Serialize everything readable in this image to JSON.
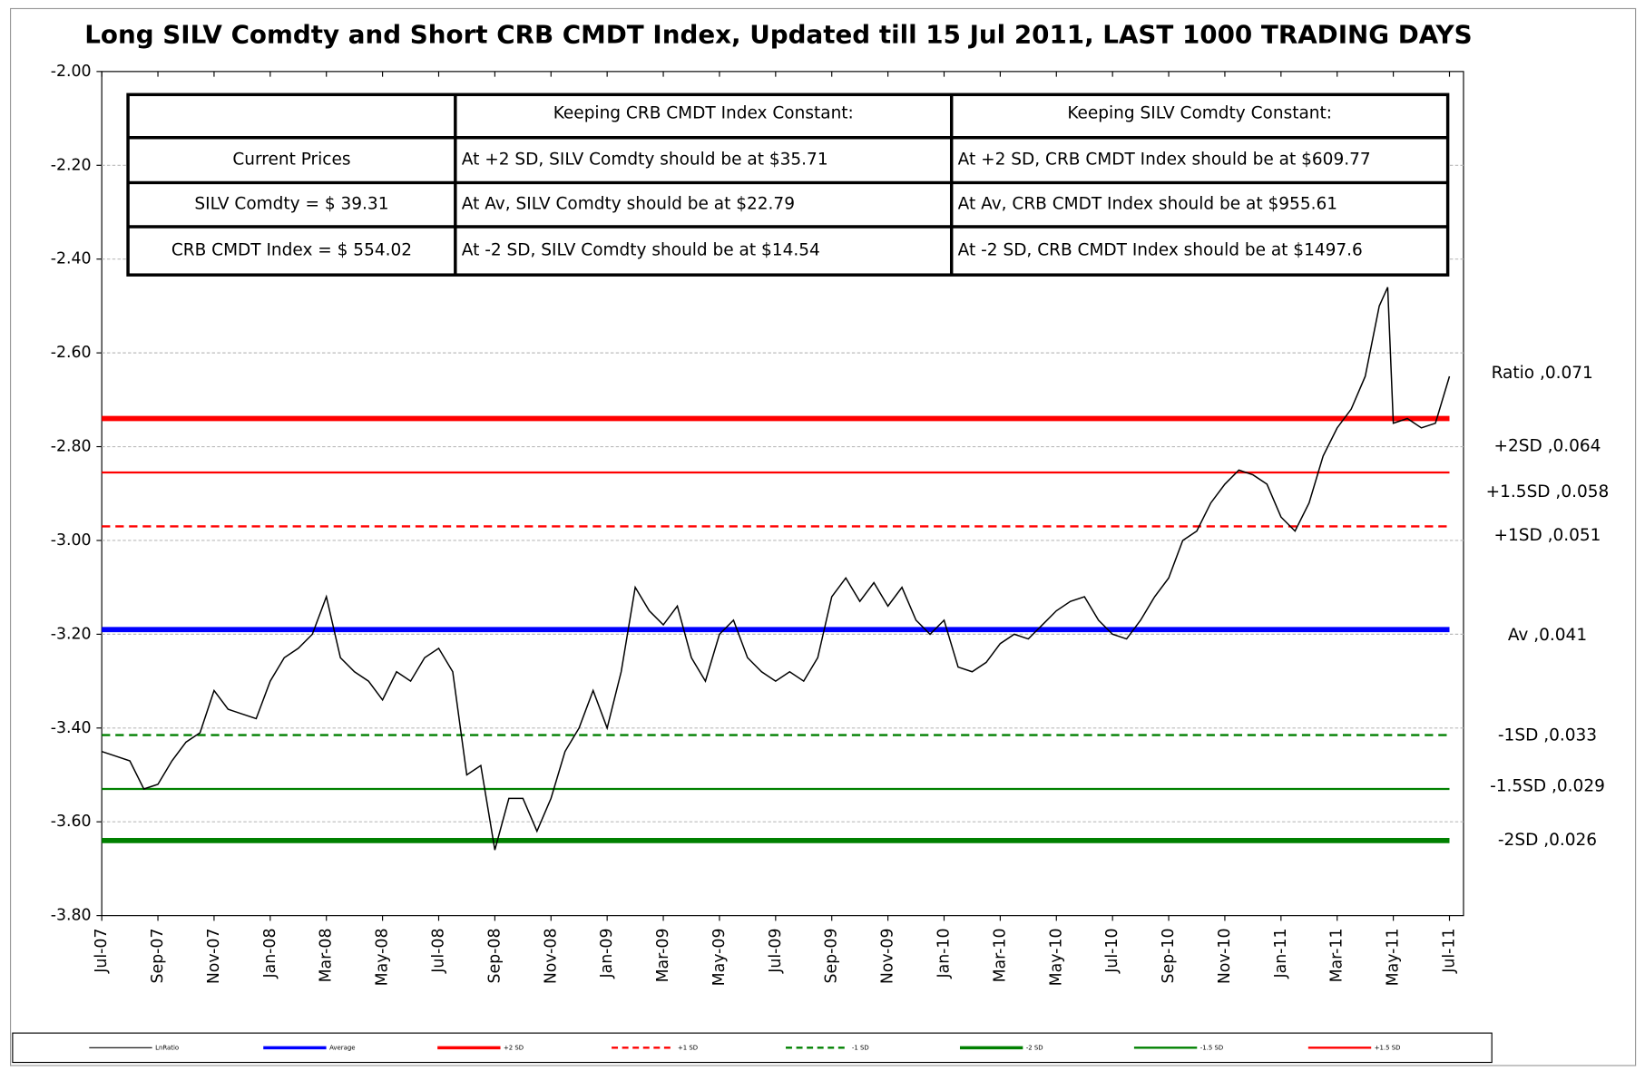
{
  "chart_data": {
    "type": "line",
    "title": "Long SILV Comdty and Short CRB CMDT Index, Updated till 15 Jul 2011, LAST 1000 TRADING DAYS",
    "xlim": [
      0,
      48.5
    ],
    "xticks": [
      {
        "value": 0,
        "label": "Jul-07"
      },
      {
        "value": 2,
        "label": "Sep-07"
      },
      {
        "value": 4,
        "label": "Nov-07"
      },
      {
        "value": 6,
        "label": "Jan-08"
      },
      {
        "value": 8,
        "label": "Mar-08"
      },
      {
        "value": 10,
        "label": "May-08"
      },
      {
        "value": 12,
        "label": "Jul-08"
      },
      {
        "value": 14,
        "label": "Sep-08"
      },
      {
        "value": 16,
        "label": "Nov-08"
      },
      {
        "value": 18,
        "label": "Jan-09"
      },
      {
        "value": 20,
        "label": "Mar-09"
      },
      {
        "value": 22,
        "label": "May-09"
      },
      {
        "value": 24,
        "label": "Jul-09"
      },
      {
        "value": 26,
        "label": "Sep-09"
      },
      {
        "value": 28,
        "label": "Nov-09"
      },
      {
        "value": 30,
        "label": "Jan-10"
      },
      {
        "value": 32,
        "label": "Mar-10"
      },
      {
        "value": 34,
        "label": "May-10"
      },
      {
        "value": 36,
        "label": "Jul-10"
      },
      {
        "value": 38,
        "label": "Sep-10"
      },
      {
        "value": 40,
        "label": "Nov-10"
      },
      {
        "value": 42,
        "label": "Jan-11"
      },
      {
        "value": 44,
        "label": "Mar-11"
      },
      {
        "value": 46,
        "label": "May-11"
      },
      {
        "value": 48,
        "label": "Jul-11"
      }
    ],
    "ylim": [
      -3.8,
      -2.0
    ],
    "yticks": [
      {
        "value": -2.0,
        "label": "-2.00"
      },
      {
        "value": -2.2,
        "label": "-2.20"
      },
      {
        "value": -2.4,
        "label": "-2.40"
      },
      {
        "value": -2.6,
        "label": "-2.60"
      },
      {
        "value": -2.8,
        "label": "-2.80"
      },
      {
        "value": -3.0,
        "label": "-3.00"
      },
      {
        "value": -3.2,
        "label": "-3.20"
      },
      {
        "value": -3.4,
        "label": "-3.40"
      },
      {
        "value": -3.6,
        "label": "-3.60"
      },
      {
        "value": -3.8,
        "label": "-3.80"
      }
    ],
    "grid": true,
    "series": [
      {
        "name": "LnRatio",
        "color": "#000000",
        "x": [
          0,
          0.5,
          1,
          1.5,
          2,
          2.5,
          3,
          3.5,
          4,
          4.5,
          5,
          5.5,
          6,
          6.5,
          7,
          7.5,
          8,
          8.5,
          9,
          9.5,
          10,
          10.5,
          11,
          11.5,
          12,
          12.5,
          13,
          13.5,
          14,
          14.5,
          15,
          15.5,
          16,
          16.5,
          17,
          17.5,
          18,
          18.5,
          19,
          19.5,
          20,
          20.5,
          21,
          21.5,
          22,
          22.5,
          23,
          23.5,
          24,
          24.5,
          25,
          25.5,
          26,
          26.5,
          27,
          27.5,
          28,
          28.5,
          29,
          29.5,
          30,
          30.5,
          31,
          31.5,
          32,
          32.5,
          33,
          33.5,
          34,
          34.5,
          35,
          35.5,
          36,
          36.5,
          37,
          37.5,
          38,
          38.5,
          39,
          39.5,
          40,
          40.5,
          41,
          41.5,
          42,
          42.5,
          43,
          43.5,
          44,
          44.5,
          45,
          45.5,
          45.8,
          46,
          46.5,
          47,
          47.5,
          48
        ],
        "values": [
          -3.45,
          -3.46,
          -3.47,
          -3.53,
          -3.52,
          -3.47,
          -3.43,
          -3.41,
          -3.32,
          -3.36,
          -3.37,
          -3.38,
          -3.3,
          -3.25,
          -3.23,
          -3.2,
          -3.12,
          -3.25,
          -3.28,
          -3.3,
          -3.34,
          -3.28,
          -3.3,
          -3.25,
          -3.23,
          -3.28,
          -3.5,
          -3.48,
          -3.66,
          -3.55,
          -3.55,
          -3.62,
          -3.55,
          -3.45,
          -3.4,
          -3.32,
          -3.4,
          -3.28,
          -3.1,
          -3.15,
          -3.18,
          -3.14,
          -3.25,
          -3.3,
          -3.2,
          -3.17,
          -3.25,
          -3.28,
          -3.3,
          -3.28,
          -3.3,
          -3.25,
          -3.12,
          -3.08,
          -3.13,
          -3.09,
          -3.14,
          -3.1,
          -3.17,
          -3.2,
          -3.17,
          -3.27,
          -3.28,
          -3.26,
          -3.22,
          -3.2,
          -3.21,
          -3.18,
          -3.15,
          -3.13,
          -3.12,
          -3.17,
          -3.2,
          -3.21,
          -3.17,
          -3.12,
          -3.08,
          -3.0,
          -2.98,
          -2.92,
          -2.88,
          -2.85,
          -2.86,
          -2.88,
          -2.95,
          -2.98,
          -2.92,
          -2.82,
          -2.76,
          -2.72,
          -2.65,
          -2.5,
          -2.46,
          -2.75,
          -2.74,
          -2.76,
          -2.75,
          -2.65
        ],
        "label": "Ratio ,0.071"
      }
    ],
    "levels": [
      {
        "name": "Average",
        "value": -3.19,
        "color": "#0000ff",
        "width": 5,
        "dash": false,
        "label": "Av ,0.041"
      },
      {
        "name": "+2 SD",
        "value": -2.74,
        "color": "#ff0000",
        "width": 5,
        "dash": false,
        "label": "+2SD ,0.064"
      },
      {
        "name": "+1 SD",
        "value": -2.97,
        "color": "#ff0000",
        "width": 2,
        "dash": true,
        "label": "+1SD ,0.051"
      },
      {
        "name": "-1 SD",
        "value": -3.415,
        "color": "#008000",
        "width": 2,
        "dash": true,
        "label": "-1SD ,0.033"
      },
      {
        "name": "-2 SD",
        "value": -3.64,
        "color": "#008000",
        "width": 5,
        "dash": false,
        "label": "-2SD ,0.026"
      },
      {
        "name": "-1.5 SD",
        "value": -3.53,
        "color": "#008000",
        "width": 2,
        "dash": false,
        "label": "-1.5SD ,0.029"
      },
      {
        "name": "+1.5 SD",
        "value": -2.855,
        "color": "#ff0000",
        "width": 2,
        "dash": false,
        "label": "+1.5SD ,0.058"
      }
    ],
    "table": {
      "header": [
        "Keeping CRB CMDT Index Constant:",
        "Keeping SILV Comdty  Constant:"
      ],
      "rows": [
        [
          "Current Prices",
          "At +2 SD, SILV Comdty should be at $35.71",
          "At +2 SD, CRB CMDT Index should be at $609.77"
        ],
        [
          "SILV Comdty =  $ 39.31",
          "At Av, SILV Comdty should be at $22.79",
          "At Av, CRB CMDT Index should be at $955.61"
        ],
        [
          "CRB CMDT Index = $ 554.02",
          "At -2 SD, SILV Comdty  should be at $14.54",
          "At -2 SD, CRB CMDT Index should be at $1497.6"
        ]
      ]
    }
  }
}
